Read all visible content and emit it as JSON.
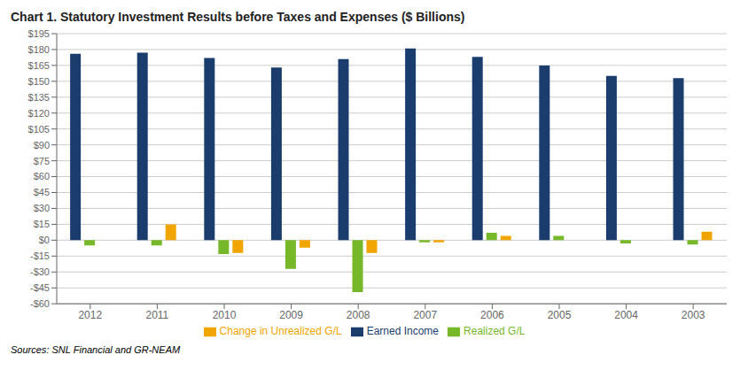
{
  "chart_data": {
    "type": "bar",
    "title": "Chart 1. Statutory Investment Results before Taxes and Expenses ($ Billions)",
    "categories": [
      "2012",
      "2011",
      "2010",
      "2009",
      "2008",
      "2007",
      "2006",
      "2005",
      "2004",
      "2003"
    ],
    "series": [
      {
        "name": "Earned Income",
        "color": "#1b3d6e",
        "values": [
          176,
          177,
          172,
          163,
          171,
          181,
          173,
          165,
          155,
          153
        ]
      },
      {
        "name": "Realized G/L",
        "color": "#76b82a",
        "values": [
          -5,
          -5,
          -13,
          -27,
          -49,
          -2,
          7,
          4,
          -3,
          -4
        ]
      },
      {
        "name": "Change in Unrealized G/L",
        "color": "#f0a500",
        "values": [
          0,
          15,
          -12,
          -7,
          -12,
          -2,
          4,
          0,
          0,
          8
        ]
      }
    ],
    "ylim": [
      -60,
      195
    ],
    "yticks": [
      {
        "value": -60,
        "label": "-$60"
      },
      {
        "value": -45,
        "label": "-$45"
      },
      {
        "value": -30,
        "label": "-$30"
      },
      {
        "value": -15,
        "label": "-$15"
      },
      {
        "value": 0,
        "label": "$0"
      },
      {
        "value": 15,
        "label": "$15"
      },
      {
        "value": 30,
        "label": "$30"
      },
      {
        "value": 45,
        "label": "$45"
      },
      {
        "value": 60,
        "label": "$60"
      },
      {
        "value": 75,
        "label": "$75"
      },
      {
        "value": 90,
        "label": "$90"
      },
      {
        "value": 105,
        "label": "$105"
      },
      {
        "value": 120,
        "label": "$120"
      },
      {
        "value": 135,
        "label": "$135"
      },
      {
        "value": 150,
        "label": "$150"
      },
      {
        "value": 165,
        "label": "$165"
      },
      {
        "value": 180,
        "label": "$180"
      },
      {
        "value": 195,
        "label": "$195"
      }
    ],
    "grid": true,
    "legend": "bottom",
    "annotations": [
      "Sources: SNL Financial and GR-NEAM"
    ]
  }
}
